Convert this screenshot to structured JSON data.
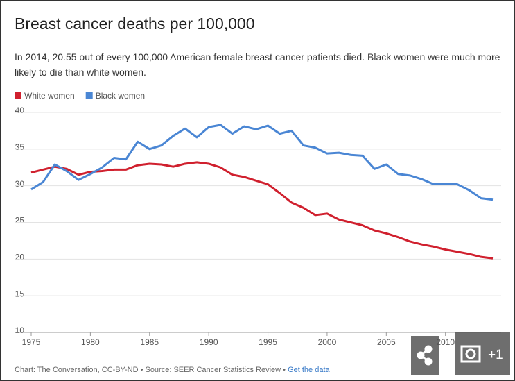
{
  "chart_data": {
    "type": "line",
    "title": "Breast cancer deaths per 100,000",
    "subtitle": "In 2014, 20.55 out of every 100,000 American female breast cancer patients died. Black women were much more likely to die than white women.",
    "x": [
      1975,
      1976,
      1977,
      1978,
      1979,
      1980,
      1981,
      1982,
      1983,
      1984,
      1985,
      1986,
      1987,
      1988,
      1989,
      1990,
      1991,
      1992,
      1993,
      1994,
      1995,
      1996,
      1997,
      1998,
      1999,
      2000,
      2001,
      2002,
      2003,
      2004,
      2005,
      2006,
      2007,
      2008,
      2009,
      2010,
      2011,
      2012,
      2013,
      2014
    ],
    "series": [
      {
        "name": "White women",
        "color": "#d0202e",
        "values": [
          31.8,
          32.2,
          32.6,
          32.3,
          31.5,
          31.9,
          32.0,
          32.2,
          32.2,
          32.8,
          33.0,
          32.9,
          32.6,
          33.0,
          33.2,
          33.0,
          32.5,
          31.5,
          31.2,
          30.7,
          30.2,
          29.0,
          27.7,
          27.0,
          26.0,
          26.2,
          25.4,
          25.0,
          24.6,
          23.9,
          23.5,
          23.0,
          22.4,
          22.0,
          21.7,
          21.3,
          21.0,
          20.7,
          20.3,
          20.1
        ]
      },
      {
        "name": "Black women",
        "color": "#4a86d4",
        "values": [
          29.5,
          30.5,
          32.9,
          32.0,
          30.8,
          31.6,
          32.5,
          33.8,
          33.6,
          36.0,
          35.0,
          35.5,
          36.8,
          37.8,
          36.6,
          38.0,
          38.3,
          37.1,
          38.1,
          37.7,
          38.2,
          37.1,
          37.5,
          35.5,
          35.2,
          34.4,
          34.5,
          34.2,
          34.1,
          32.3,
          32.9,
          31.6,
          31.4,
          30.9,
          30.2,
          30.2,
          30.2,
          29.4,
          28.3,
          28.1
        ]
      }
    ],
    "xlim": [
      1975,
      2014
    ],
    "xticks": [
      1975,
      1980,
      1985,
      1990,
      1995,
      2000,
      2005,
      2010
    ],
    "ylim": [
      10,
      40
    ],
    "yticks": [
      10,
      15,
      20,
      25,
      30,
      35,
      40
    ],
    "grid": true,
    "source": "Chart: The Conversation, CC-BY-ND • Source: SEER Cancer Statistics Review • ",
    "link": "Get the data",
    "photo_count": "+1"
  }
}
